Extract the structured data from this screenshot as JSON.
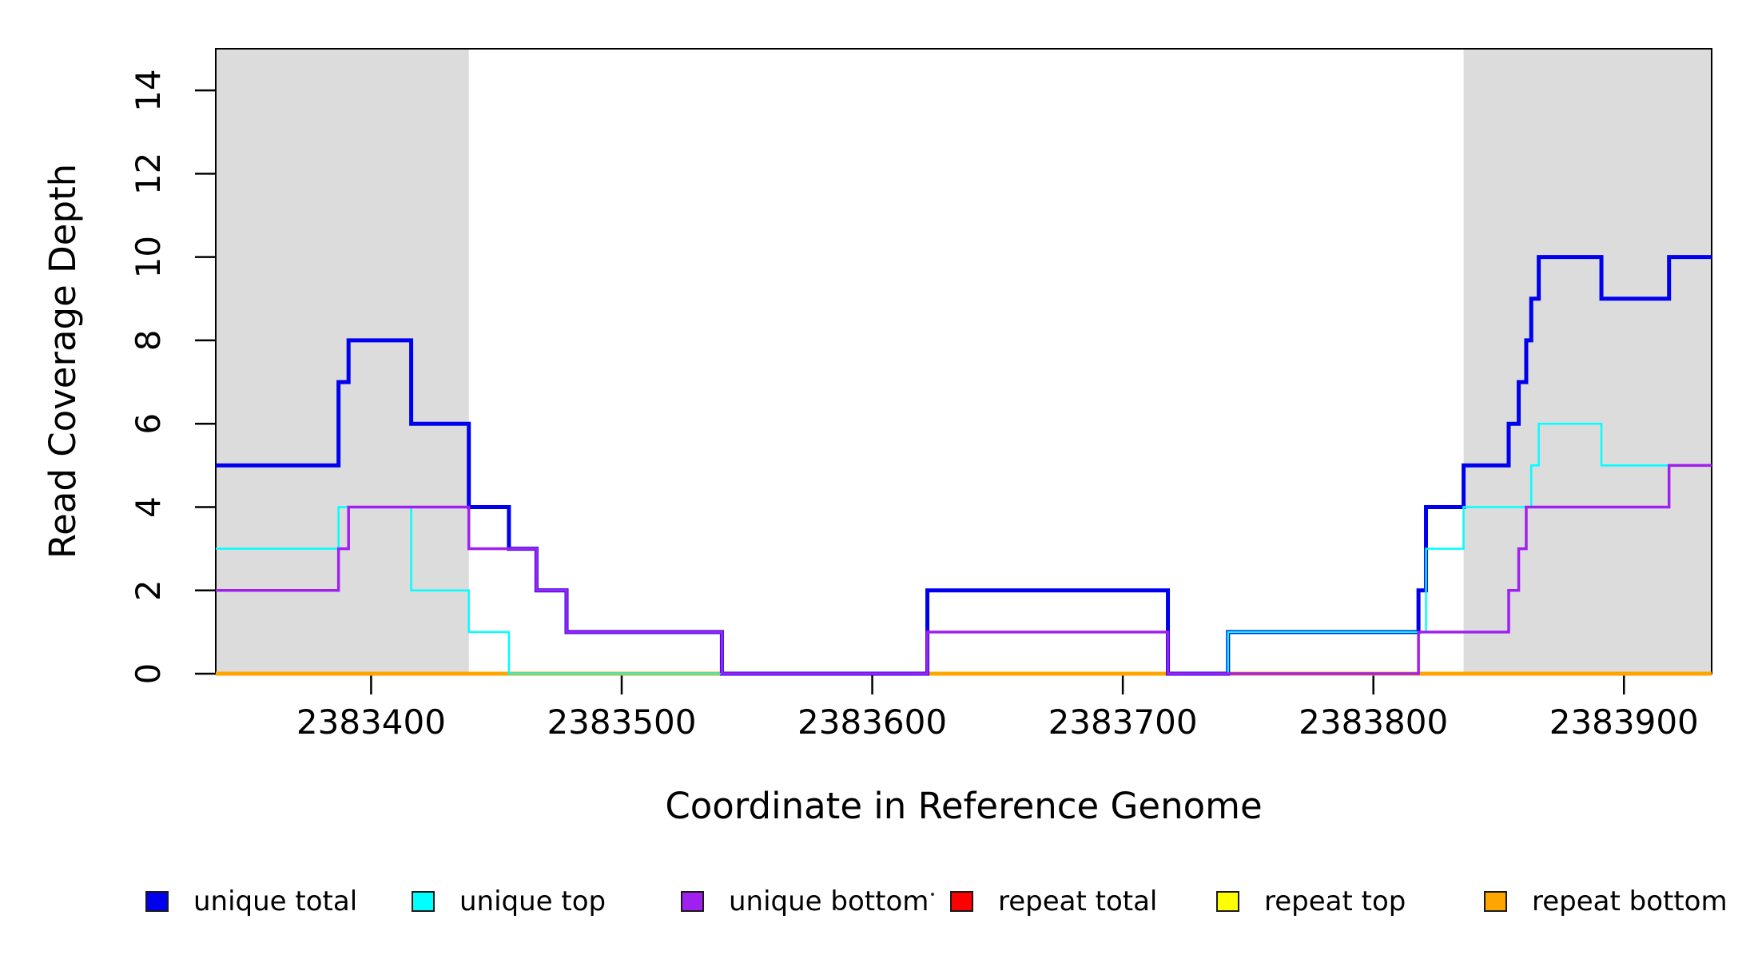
{
  "figure": {
    "xlabel": "Coordinate in Reference Genome",
    "ylabel": "Read Coverage Depth"
  },
  "chart_data": {
    "type": "line",
    "subtype": "step",
    "title": "",
    "xlabel": "Coordinate in Reference Genome",
    "ylabel": "Read Coverage Depth",
    "xlim": [
      2383338,
      2383935
    ],
    "ylim": [
      0,
      15
    ],
    "x_ticks": [
      2383400,
      2383500,
      2383600,
      2383700,
      2383800,
      2383900
    ],
    "y_ticks": [
      0,
      2,
      4,
      6,
      8,
      10,
      12,
      14
    ],
    "grid": false,
    "legend_position": "bottom",
    "box_color": "#000000",
    "shaded_regions": [
      {
        "x0": 2383338,
        "x1": 2383439,
        "color": "#DCDCDC"
      },
      {
        "x0": 2383836,
        "x1": 2383935,
        "color": "#DCDCDC"
      }
    ],
    "series_end_x": 2383935,
    "series": [
      {
        "label": "unique total",
        "color": "#0000EE",
        "steps": [
          [
            2383338,
            5
          ],
          [
            2383387,
            7
          ],
          [
            2383391,
            8
          ],
          [
            2383416,
            6
          ],
          [
            2383439,
            4
          ],
          [
            2383455,
            3
          ],
          [
            2383466,
            2
          ],
          [
            2383478,
            1
          ],
          [
            2383540,
            0
          ],
          [
            2383622,
            2
          ],
          [
            2383718,
            0
          ],
          [
            2383742,
            1
          ],
          [
            2383818,
            2
          ],
          [
            2383821,
            4
          ],
          [
            2383836,
            5
          ],
          [
            2383854,
            6
          ],
          [
            2383858,
            7
          ],
          [
            2383861,
            8
          ],
          [
            2383863,
            9
          ],
          [
            2383866,
            10
          ],
          [
            2383891,
            9
          ],
          [
            2383918,
            10
          ]
        ]
      },
      {
        "label": "unique top",
        "color": "#00FFFF",
        "steps": [
          [
            2383338,
            3
          ],
          [
            2383387,
            4
          ],
          [
            2383416,
            2
          ],
          [
            2383439,
            1
          ],
          [
            2383455,
            0
          ],
          [
            2383622,
            1
          ],
          [
            2383718,
            0
          ],
          [
            2383742,
            1
          ],
          [
            2383821,
            3
          ],
          [
            2383836,
            4
          ],
          [
            2383863,
            5
          ],
          [
            2383866,
            6
          ],
          [
            2383891,
            5
          ]
        ]
      },
      {
        "label": "unique bottom",
        "color": "#A020F0",
        "steps": [
          [
            2383338,
            2
          ],
          [
            2383387,
            3
          ],
          [
            2383391,
            4
          ],
          [
            2383439,
            3
          ],
          [
            2383466,
            2
          ],
          [
            2383478,
            1
          ],
          [
            2383540,
            0
          ],
          [
            2383622,
            1
          ],
          [
            2383718,
            0
          ],
          [
            2383818,
            1
          ],
          [
            2383854,
            2
          ],
          [
            2383858,
            3
          ],
          [
            2383861,
            4
          ],
          [
            2383918,
            5
          ]
        ]
      },
      {
        "label": "repeat total",
        "color": "#FF0000",
        "steps": [
          [
            2383338,
            0
          ]
        ]
      },
      {
        "label": "repeat top",
        "color": "#FFFF00",
        "steps": [
          [
            2383338,
            0
          ]
        ]
      },
      {
        "label": "repeat bottom",
        "color": "#FFA500",
        "steps": [
          [
            2383338,
            0
          ]
        ]
      }
    ]
  }
}
